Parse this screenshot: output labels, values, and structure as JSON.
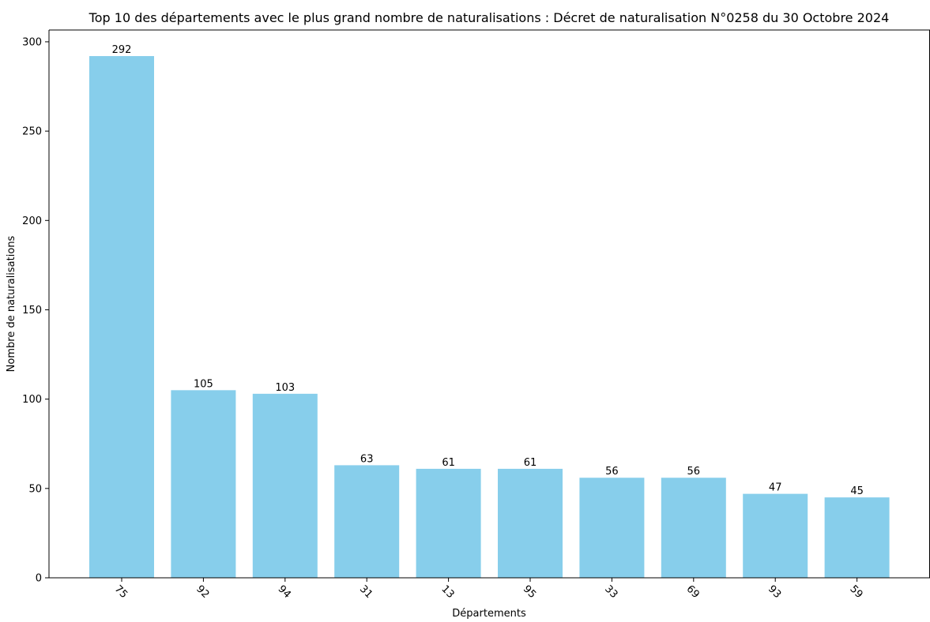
{
  "colors": {
    "bar": "#87CEEB",
    "axis": "#000000",
    "background": "#ffffff"
  },
  "chart_data": {
    "type": "bar",
    "title": "Top 10 des départements avec le plus grand nombre de naturalisations : Décret de naturalisation N°0258 du 30 Octobre 2024",
    "xlabel": "Départements",
    "ylabel": "Nombre de naturalisations",
    "categories": [
      "75",
      "92",
      "94",
      "31",
      "13",
      "95",
      "33",
      "69",
      "93",
      "59"
    ],
    "values": [
      292,
      105,
      103,
      63,
      61,
      61,
      56,
      56,
      47,
      45
    ],
    "ylim": [
      0,
      306.6
    ],
    "yticks": [
      0,
      50,
      100,
      150,
      200,
      250,
      300
    ],
    "grid": false,
    "legend": "none",
    "show_value_labels": true,
    "xtick_rotation": 45
  }
}
